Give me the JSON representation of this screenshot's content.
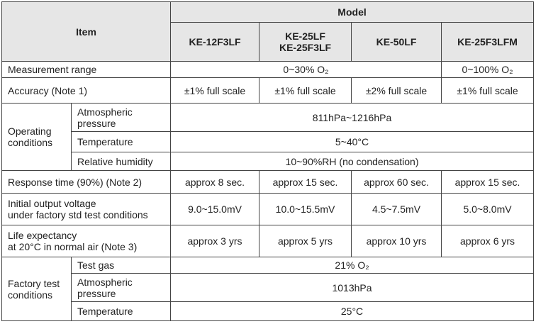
{
  "header": {
    "item": "Item",
    "model": "Model",
    "models": [
      [
        "KE-12F3LF"
      ],
      [
        "KE-25LF",
        "KE-25F3LF"
      ],
      [
        "KE-50LF"
      ],
      [
        "KE-25F3LFM"
      ]
    ]
  },
  "measurement_range": {
    "label": "Measurement range",
    "values": [
      "0~30% O₂",
      "0~100% O₂"
    ]
  },
  "accuracy": {
    "label": "Accuracy (Note 1)",
    "values": [
      "±1% full scale",
      "±1% full scale",
      "±2% full scale",
      "±1% full scale"
    ]
  },
  "operating_conditions": {
    "label": [
      "Operating",
      "conditions"
    ],
    "items": [
      {
        "label": [
          "Atmospheric",
          "pressure"
        ],
        "value": "811hPa~1216hPa"
      },
      {
        "label": [
          "Temperature"
        ],
        "value": "5~40°C"
      },
      {
        "label": [
          "Relative humidity"
        ],
        "value": "10~90%RH (no condensation)"
      }
    ]
  },
  "response_time": {
    "label": [
      "Response time (90%) (Note 2)"
    ],
    "values": [
      "approx 8 sec.",
      "approx 15 sec.",
      "approx 60 sec.",
      "approx 15 sec."
    ]
  },
  "initial_output": {
    "label": [
      "Initial output voltage",
      "under factory std test conditions"
    ],
    "values": [
      "9.0~15.0mV",
      "10.0~15.5mV",
      "4.5~7.5mV",
      "5.0~8.0mV"
    ]
  },
  "life_expectancy": {
    "label": [
      "Life expectancy",
      "at 20°C in normal air (Note 3)"
    ],
    "values": [
      "approx 3 yrs",
      "approx 5 yrs",
      "approx 10 yrs",
      "approx 6 yrs"
    ]
  },
  "factory_test_conditions": {
    "label": [
      "Factory test",
      "conditions"
    ],
    "items": [
      {
        "label": [
          "Test gas"
        ],
        "value": "21% O₂"
      },
      {
        "label": [
          "Atmospheric",
          "pressure"
        ],
        "value": "1013hPa"
      },
      {
        "label": [
          "Temperature"
        ],
        "value": "25°C"
      }
    ]
  }
}
